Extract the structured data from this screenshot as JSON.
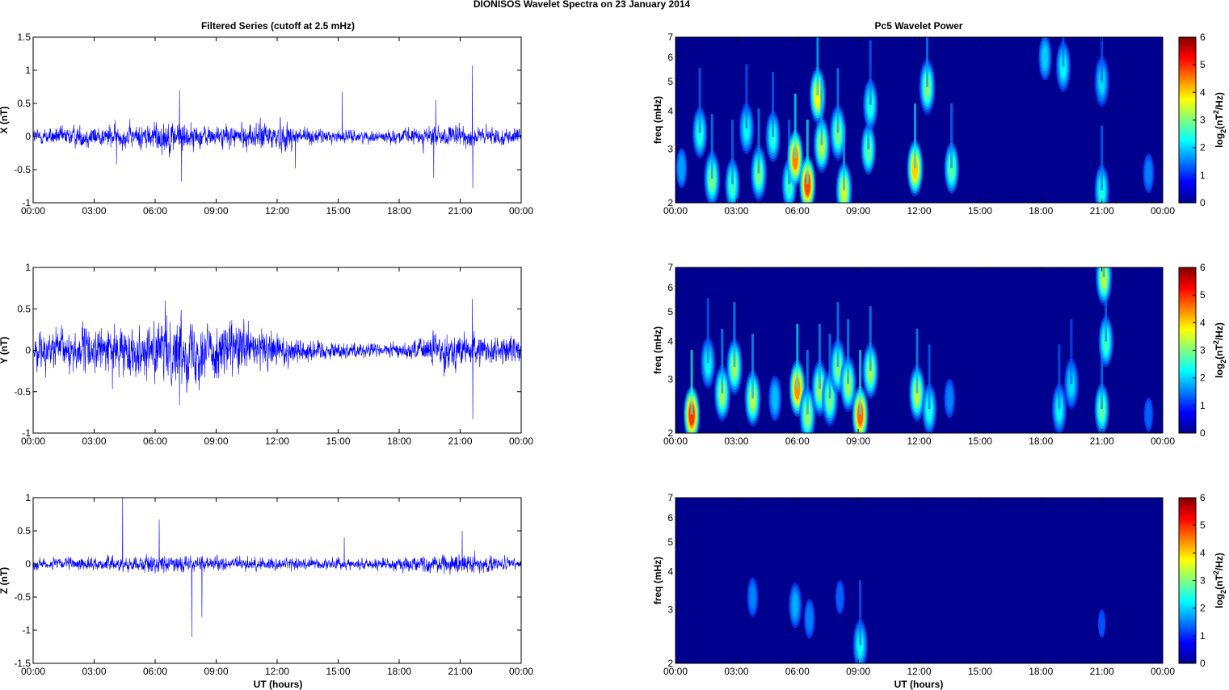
{
  "figure": {
    "title": "DIONISOS Wavelet Spectra on 23 January   2014",
    "left_column_title": "Filtered Series (cutoff at 2.5 mHz)",
    "right_column_title": "Pc5 Wavelet Power",
    "xlabel": "UT (hours)",
    "freq_label": "freq (mHz)",
    "colorbar_label": "log2(nT2/Hz)"
  },
  "colors": {
    "trace": "#0000ff",
    "background": "#00008f",
    "colormap": "jet"
  },
  "chart_data": [
    {
      "id": "x-series",
      "type": "line",
      "ylabel": "X (nT)",
      "series": [
        {
          "values": "dense random trace, centered near 0"
        }
      ],
      "x_ticks": [
        "00:00",
        "03:00",
        "06:00",
        "09:00",
        "12:00",
        "15:00",
        "18:00",
        "21:00",
        "00:00"
      ],
      "xlim": [
        0,
        24
      ],
      "ylim": [
        -1,
        1.5
      ],
      "y_ticks": [
        -1,
        -0.5,
        0,
        0.5,
        1,
        1.5
      ],
      "noise": [
        {
          "t": 0,
          "amp": 0.09
        },
        {
          "t": 2,
          "amp": 0.12
        },
        {
          "t": 5,
          "amp": 0.13
        },
        {
          "t": 6.5,
          "amp": 0.2
        },
        {
          "t": 9,
          "amp": 0.11
        },
        {
          "t": 12,
          "amp": 0.18
        },
        {
          "t": 14,
          "amp": 0.08
        },
        {
          "t": 17,
          "amp": 0.06
        },
        {
          "t": 19,
          "amp": 0.11
        },
        {
          "t": 21,
          "amp": 0.12
        },
        {
          "t": 24,
          "amp": 0.08
        }
      ],
      "spikes": [
        {
          "t": 7.2,
          "y": 0.7
        },
        {
          "t": 7.3,
          "y": -0.68
        },
        {
          "t": 15.2,
          "y": 0.67
        },
        {
          "t": 19.8,
          "y": 0.55
        },
        {
          "t": 19.7,
          "y": -0.62
        },
        {
          "t": 21.6,
          "y": 1.07
        },
        {
          "t": 21.62,
          "y": -0.78
        },
        {
          "t": 4.1,
          "y": -0.42
        },
        {
          "t": 12.9,
          "y": -0.48
        }
      ]
    },
    {
      "id": "y-series",
      "type": "line",
      "ylabel": "Y (nT)",
      "series": [
        {
          "values": "dense random trace, centered near 0"
        }
      ],
      "x_ticks": [
        "00:00",
        "03:00",
        "06:00",
        "09:00",
        "12:00",
        "15:00",
        "18:00",
        "21:00",
        "00:00"
      ],
      "xlim": [
        0,
        24
      ],
      "ylim": [
        -1,
        1
      ],
      "y_ticks": [
        -1,
        -0.5,
        0,
        0.5,
        1
      ],
      "noise": [
        {
          "t": 0,
          "amp": 0.15
        },
        {
          "t": 2,
          "amp": 0.2
        },
        {
          "t": 5,
          "amp": 0.2
        },
        {
          "t": 7,
          "amp": 0.3
        },
        {
          "t": 10,
          "amp": 0.25
        },
        {
          "t": 13,
          "amp": 0.12
        },
        {
          "t": 15,
          "amp": 0.08
        },
        {
          "t": 18,
          "amp": 0.06
        },
        {
          "t": 20,
          "amp": 0.17
        },
        {
          "t": 22,
          "amp": 0.13
        },
        {
          "t": 24,
          "amp": 0.12
        }
      ],
      "spikes": [
        {
          "t": 21.6,
          "y": 0.62
        },
        {
          "t": 21.62,
          "y": -0.83
        },
        {
          "t": 7.2,
          "y": -0.66
        },
        {
          "t": 6.5,
          "y": 0.6
        },
        {
          "t": 3.9,
          "y": -0.47
        }
      ]
    },
    {
      "id": "z-series",
      "type": "line",
      "ylabel": "Z (nT)",
      "series": [
        {
          "values": "dense random trace, centered near 0"
        }
      ],
      "x_ticks": [
        "00:00",
        "03:00",
        "06:00",
        "09:00",
        "12:00",
        "15:00",
        "18:00",
        "21:00",
        "00:00"
      ],
      "xlim": [
        0,
        24
      ],
      "ylim": [
        -1.5,
        1
      ],
      "y_ticks": [
        -1.5,
        -1,
        -0.5,
        0,
        0.5,
        1
      ],
      "noise": [
        {
          "t": 0,
          "amp": 0.06
        },
        {
          "t": 4,
          "amp": 0.08
        },
        {
          "t": 6,
          "amp": 0.1
        },
        {
          "t": 9,
          "amp": 0.08
        },
        {
          "t": 13,
          "amp": 0.07
        },
        {
          "t": 16,
          "amp": 0.06
        },
        {
          "t": 19,
          "amp": 0.09
        },
        {
          "t": 21,
          "amp": 0.12
        },
        {
          "t": 24,
          "amp": 0.05
        }
      ],
      "spikes": [
        {
          "t": 4.4,
          "y": 1.0
        },
        {
          "t": 6.2,
          "y": 0.67
        },
        {
          "t": 7.8,
          "y": -1.1
        },
        {
          "t": 8.3,
          "y": -0.8
        },
        {
          "t": 15.3,
          "y": 0.4
        },
        {
          "t": 21.1,
          "y": 0.5
        }
      ]
    },
    {
      "id": "x-wavelet",
      "type": "heatmap",
      "ylabel": "freq (mHz)",
      "y_scale": "log",
      "ylim": [
        2,
        7
      ],
      "y_ticks": [
        2,
        3,
        4,
        5,
        6,
        7
      ],
      "x_ticks": [
        "00:00",
        "03:00",
        "06:00",
        "09:00",
        "12:00",
        "15:00",
        "18:00",
        "21:00",
        "00:00"
      ],
      "xlim": [
        0,
        24
      ],
      "colorbar": {
        "min": 0,
        "max": 6,
        "ticks": [
          0,
          1,
          2,
          3,
          4,
          5,
          6
        ]
      },
      "blobs": [
        {
          "t": 0.3,
          "f": 2.6,
          "v": 1.2
        },
        {
          "t": 1.2,
          "f": 3.4,
          "v": 2.0
        },
        {
          "t": 1.8,
          "f": 2.4,
          "v": 2.6
        },
        {
          "t": 2.8,
          "f": 2.3,
          "v": 2.2
        },
        {
          "t": 3.5,
          "f": 3.5,
          "v": 1.8
        },
        {
          "t": 4.1,
          "f": 2.5,
          "v": 2.6
        },
        {
          "t": 4.8,
          "f": 3.3,
          "v": 2.0
        },
        {
          "t": 5.6,
          "f": 2.3,
          "v": 2.2
        },
        {
          "t": 5.9,
          "f": 2.8,
          "v": 4.3
        },
        {
          "t": 6.5,
          "f": 2.3,
          "v": 4.7
        },
        {
          "t": 7.0,
          "f": 4.5,
          "v": 3.5
        },
        {
          "t": 7.2,
          "f": 3.1,
          "v": 3.0
        },
        {
          "t": 8.0,
          "f": 3.4,
          "v": 2.6
        },
        {
          "t": 8.3,
          "f": 2.2,
          "v": 3.2
        },
        {
          "t": 9.5,
          "f": 3.0,
          "v": 2.4
        },
        {
          "t": 9.6,
          "f": 4.2,
          "v": 2.0
        },
        {
          "t": 11.8,
          "f": 2.6,
          "v": 3.8
        },
        {
          "t": 12.4,
          "f": 4.8,
          "v": 2.6
        },
        {
          "t": 13.6,
          "f": 2.6,
          "v": 2.4
        },
        {
          "t": 16.4,
          "f": 2.4,
          "v": 0.6
        },
        {
          "t": 18.2,
          "f": 6.0,
          "v": 1.5
        },
        {
          "t": 19.1,
          "f": 5.6,
          "v": 1.8
        },
        {
          "t": 21.0,
          "f": 2.2,
          "v": 2.0
        },
        {
          "t": 21.0,
          "f": 5.0,
          "v": 1.6
        },
        {
          "t": 23.3,
          "f": 2.5,
          "v": 1.0
        }
      ]
    },
    {
      "id": "y-wavelet",
      "type": "heatmap",
      "ylabel": "freq (mHz)",
      "y_scale": "log",
      "ylim": [
        2,
        7
      ],
      "y_ticks": [
        2,
        3,
        4,
        5,
        6,
        7
      ],
      "x_ticks": [
        "00:00",
        "03:00",
        "06:00",
        "09:00",
        "12:00",
        "15:00",
        "18:00",
        "21:00",
        "00:00"
      ],
      "xlim": [
        0,
        24
      ],
      "colorbar": {
        "min": 0,
        "max": 6,
        "ticks": [
          0,
          1,
          2,
          3,
          4,
          5,
          6
        ]
      },
      "blobs": [
        {
          "t": 0.8,
          "f": 2.3,
          "v": 4.8
        },
        {
          "t": 1.6,
          "f": 3.4,
          "v": 1.8
        },
        {
          "t": 2.3,
          "f": 2.7,
          "v": 2.8
        },
        {
          "t": 2.9,
          "f": 3.3,
          "v": 2.8
        },
        {
          "t": 3.8,
          "f": 2.6,
          "v": 3.0
        },
        {
          "t": 4.9,
          "f": 2.6,
          "v": 1.4
        },
        {
          "t": 6.0,
          "f": 2.8,
          "v": 4.2
        },
        {
          "t": 6.5,
          "f": 2.3,
          "v": 2.8
        },
        {
          "t": 7.1,
          "f": 2.8,
          "v": 2.8
        },
        {
          "t": 7.6,
          "f": 2.6,
          "v": 2.6
        },
        {
          "t": 8.0,
          "f": 3.3,
          "v": 2.6
        },
        {
          "t": 8.5,
          "f": 2.9,
          "v": 2.8
        },
        {
          "t": 9.1,
          "f": 2.3,
          "v": 4.5
        },
        {
          "t": 9.6,
          "f": 3.2,
          "v": 2.8
        },
        {
          "t": 11.9,
          "f": 2.7,
          "v": 3.0
        },
        {
          "t": 12.5,
          "f": 2.4,
          "v": 2.0
        },
        {
          "t": 13.5,
          "f": 2.6,
          "v": 1.0
        },
        {
          "t": 18.9,
          "f": 2.4,
          "v": 1.8
        },
        {
          "t": 19.5,
          "f": 2.9,
          "v": 1.6
        },
        {
          "t": 21.0,
          "f": 2.4,
          "v": 2.4
        },
        {
          "t": 21.2,
          "f": 4.0,
          "v": 2.2
        },
        {
          "t": 21.1,
          "f": 6.5,
          "v": 3.0
        },
        {
          "t": 23.3,
          "f": 2.3,
          "v": 0.8
        }
      ]
    },
    {
      "id": "z-wavelet",
      "type": "heatmap",
      "ylabel": "freq (mHz)",
      "y_scale": "log",
      "ylim": [
        2,
        7
      ],
      "y_ticks": [
        2,
        3,
        4,
        5,
        6,
        7
      ],
      "x_ticks": [
        "00:00",
        "03:00",
        "06:00",
        "09:00",
        "12:00",
        "15:00",
        "18:00",
        "21:00",
        "00:00"
      ],
      "xlim": [
        0,
        24
      ],
      "colorbar": {
        "min": 0,
        "max": 6,
        "ticks": [
          0,
          1,
          2,
          3,
          4,
          5,
          6
        ]
      },
      "blobs": [
        {
          "t": 3.8,
          "f": 3.3,
          "v": 1.0
        },
        {
          "t": 5.9,
          "f": 3.1,
          "v": 1.3
        },
        {
          "t": 6.6,
          "f": 2.8,
          "v": 1.0
        },
        {
          "t": 8.1,
          "f": 3.3,
          "v": 0.8
        },
        {
          "t": 9.1,
          "f": 2.3,
          "v": 1.8
        },
        {
          "t": 12.3,
          "f": 2.9,
          "v": 0.6
        },
        {
          "t": 20.2,
          "f": 4.2,
          "v": 0.6
        },
        {
          "t": 21.0,
          "f": 2.7,
          "v": 0.7
        },
        {
          "t": 0.8,
          "f": 2.6,
          "v": 0.4
        }
      ]
    }
  ]
}
